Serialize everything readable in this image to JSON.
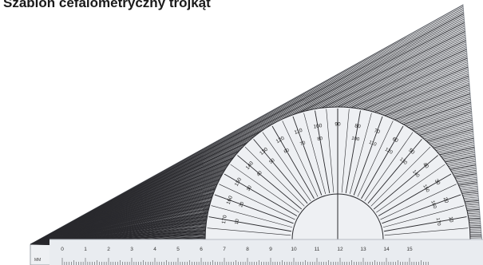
{
  "caption": "Szablon cefalometryczny trójkąt",
  "ruler": {
    "unit_label": "MM",
    "cm_labels": [
      "0",
      "1",
      "2",
      "3",
      "4",
      "5",
      "6",
      "7",
      "8",
      "9",
      "10",
      "11",
      "12",
      "13",
      "14",
      "15"
    ]
  },
  "protractor": {
    "outer_labels": [
      "170",
      "160",
      "150",
      "140",
      "130",
      "120",
      "110",
      "100",
      "90",
      "80",
      "70",
      "60",
      "50",
      "40",
      "30",
      "20",
      "10"
    ],
    "inner_labels": [
      "10",
      "20",
      "30",
      "40",
      "50",
      "60",
      "70",
      "80",
      "100",
      "110",
      "120",
      "130",
      "140",
      "150",
      "160",
      "170"
    ]
  },
  "colors": {
    "plastic": "#eef0f3",
    "ink": "#2a2a2e",
    "edge": "#9ea3aa"
  }
}
